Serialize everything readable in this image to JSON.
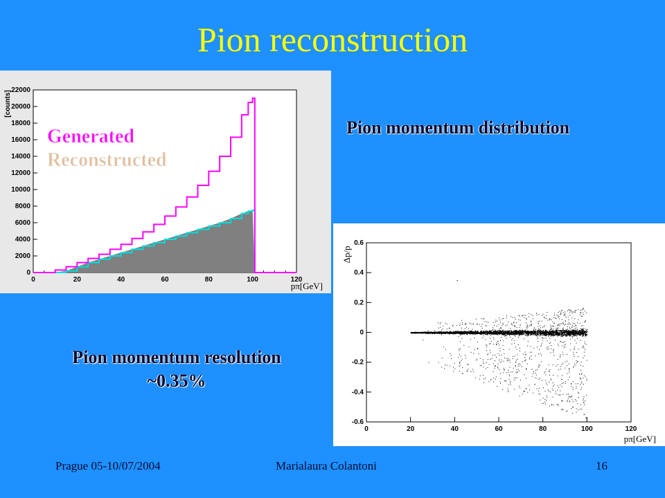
{
  "slide": {
    "title": "Pion reconstruction",
    "caption_distribution": "Pion momentum distribution",
    "caption_resolution_line1": "Pion momentum resolution",
    "caption_resolution_line2": "~0.35%",
    "footer_left": "Prague 05-10/07/2004",
    "footer_center": "Marialaura Colantoni",
    "footer_right": "16"
  },
  "chart_data": [
    {
      "type": "bar",
      "ylabel": "[counts]",
      "xlabel": "pπ[GeV]",
      "xlim": [
        0,
        120
      ],
      "ylim": [
        0,
        22000
      ],
      "x_ticks": [
        0,
        20,
        40,
        60,
        80,
        100,
        120
      ],
      "y_ticks": [
        0,
        2000,
        4000,
        6000,
        8000,
        10000,
        12000,
        14000,
        16000,
        18000,
        20000,
        22000
      ],
      "legend": [
        "Generated",
        "Reconstructed"
      ],
      "colors": {
        "Generated": "#ff00ff",
        "Reconstructed": "#00e0e0",
        "fill": "#808080"
      },
      "x": [
        0,
        5,
        10,
        15,
        20,
        25,
        30,
        35,
        40,
        45,
        50,
        55,
        60,
        65,
        70,
        75,
        80,
        85,
        90,
        95,
        98,
        100,
        101,
        105,
        110,
        115,
        120
      ],
      "series": [
        {
          "name": "Generated",
          "values": [
            0,
            0,
            300,
            700,
            1200,
            1700,
            2200,
            2800,
            3400,
            4100,
            4900,
            5800,
            6800,
            7900,
            9100,
            10500,
            12200,
            14000,
            16300,
            19000,
            20500,
            21000,
            0,
            0,
            0,
            0,
            0
          ]
        },
        {
          "name": "Reconstructed",
          "values": [
            0,
            0,
            0,
            200,
            700,
            1200,
            1600,
            2000,
            2400,
            2800,
            3200,
            3600,
            4000,
            4400,
            4800,
            5200,
            5600,
            6000,
            6500,
            7100,
            7400,
            7500,
            0,
            0,
            0,
            0,
            0
          ]
        }
      ]
    },
    {
      "type": "scatter",
      "ylabel": "Δp/p",
      "xlabel": "pπ[GeV]",
      "xlim": [
        0,
        120
      ],
      "ylim": [
        -0.6,
        0.6
      ],
      "x_ticks": [
        0,
        20,
        40,
        60,
        80,
        100,
        120
      ],
      "y_ticks": [
        -0.6,
        -0.4,
        -0.2,
        0,
        0.2,
        0.4,
        0.6
      ],
      "x_range_data": [
        20,
        100
      ],
      "core_band_halfwidth": [
        0.004,
        0.035
      ],
      "outlier": {
        "x": 41,
        "y": 0.35
      }
    }
  ]
}
